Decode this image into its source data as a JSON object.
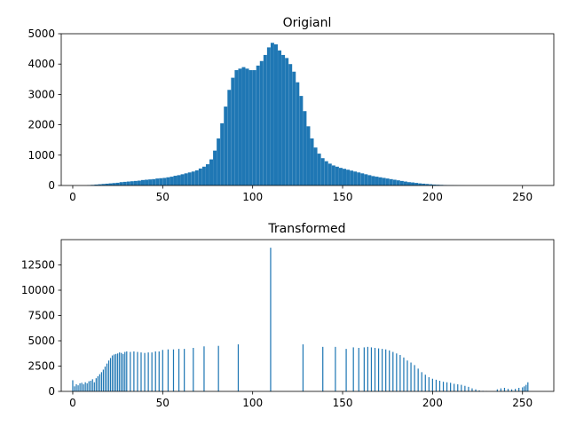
{
  "chart_data": [
    {
      "type": "bar",
      "title": "Origianl",
      "xlabel": "",
      "ylabel": "",
      "xlim": [
        -6.4,
        267.4
      ],
      "ylim": [
        0,
        5000
      ],
      "xticks": [
        0,
        50,
        100,
        150,
        200,
        250
      ],
      "yticks": [
        0,
        1000,
        2000,
        3000,
        4000,
        5000
      ],
      "grid": false,
      "color": "#1f77b4",
      "x": [
        0,
        2,
        4,
        6,
        8,
        10,
        12,
        14,
        16,
        18,
        20,
        22,
        24,
        26,
        28,
        30,
        32,
        34,
        36,
        38,
        40,
        42,
        44,
        46,
        48,
        50,
        52,
        54,
        56,
        58,
        60,
        62,
        64,
        66,
        68,
        70,
        72,
        74,
        76,
        78,
        80,
        82,
        84,
        86,
        88,
        90,
        92,
        94,
        96,
        98,
        100,
        102,
        104,
        106,
        108,
        110,
        112,
        114,
        116,
        118,
        120,
        122,
        124,
        126,
        128,
        130,
        132,
        134,
        136,
        138,
        140,
        142,
        144,
        146,
        148,
        150,
        152,
        154,
        156,
        158,
        160,
        162,
        164,
        166,
        168,
        170,
        172,
        174,
        176,
        178,
        180,
        182,
        184,
        186,
        188,
        190,
        192,
        194,
        196,
        198,
        200,
        202,
        204,
        206,
        208,
        210,
        212,
        214,
        216,
        218,
        220,
        222,
        224,
        226,
        228,
        230,
        232,
        234,
        236,
        238,
        240,
        242,
        244,
        246,
        248,
        250,
        252,
        254
      ],
      "values": [
        0,
        0,
        0,
        0,
        10,
        20,
        30,
        40,
        50,
        60,
        70,
        80,
        90,
        110,
        120,
        130,
        140,
        150,
        160,
        180,
        190,
        200,
        210,
        230,
        240,
        250,
        270,
        290,
        320,
        340,
        370,
        400,
        430,
        460,
        500,
        560,
        620,
        700,
        860,
        1150,
        1550,
        2050,
        2600,
        3150,
        3550,
        3800,
        3850,
        3900,
        3850,
        3800,
        3800,
        3950,
        4100,
        4300,
        4550,
        4700,
        4650,
        4450,
        4300,
        4200,
        4000,
        3750,
        3400,
        2950,
        2450,
        1950,
        1550,
        1250,
        1050,
        900,
        800,
        720,
        660,
        620,
        580,
        550,
        520,
        490,
        460,
        430,
        400,
        370,
        340,
        310,
        290,
        270,
        250,
        230,
        210,
        190,
        170,
        150,
        130,
        110,
        100,
        85,
        70,
        60,
        50,
        40,
        30,
        25,
        20,
        15,
        10,
        8,
        5,
        3,
        2,
        1,
        0,
        0,
        0,
        0,
        0,
        0,
        0,
        0,
        0,
        0,
        0,
        0,
        0,
        0,
        0,
        0,
        0,
        0
      ]
    },
    {
      "type": "bar",
      "title": "Transformed",
      "xlabel": "",
      "ylabel": "",
      "xlim": [
        -6.4,
        267.4
      ],
      "ylim": [
        0,
        15000
      ],
      "xticks": [
        0,
        50,
        100,
        150,
        200,
        250
      ],
      "yticks": [
        0,
        2500,
        5000,
        7500,
        10000,
        12500
      ],
      "grid": false,
      "color": "#1f77b4",
      "x": [
        0,
        1,
        2,
        3,
        4,
        5,
        6,
        7,
        8,
        9,
        10,
        11,
        12,
        13,
        14,
        15,
        16,
        17,
        18,
        19,
        20,
        21,
        22,
        23,
        24,
        25,
        26,
        27,
        28,
        29,
        30,
        32,
        34,
        36,
        38,
        40,
        42,
        44,
        46,
        48,
        50,
        53,
        56,
        59,
        62,
        67,
        73,
        81,
        92,
        110,
        128,
        139,
        146,
        152,
        156,
        159,
        162,
        164,
        166,
        168,
        170,
        172,
        174,
        176,
        178,
        180,
        182,
        184,
        186,
        188,
        190,
        192,
        194,
        196,
        198,
        200,
        202,
        204,
        206,
        208,
        210,
        212,
        214,
        216,
        218,
        220,
        222,
        224,
        226,
        228,
        230,
        232,
        234,
        236,
        238,
        240,
        242,
        244,
        246,
        248,
        250,
        251,
        252,
        253
      ],
      "values": [
        1100,
        500,
        700,
        600,
        800,
        850,
        700,
        900,
        800,
        1000,
        1050,
        1200,
        900,
        1300,
        1500,
        1700,
        1900,
        2150,
        2450,
        2750,
        3050,
        3300,
        3550,
        3650,
        3700,
        3750,
        3850,
        3800,
        3700,
        3900,
        3950,
        3900,
        3950,
        3900,
        3850,
        3800,
        3850,
        3850,
        3950,
        3950,
        4100,
        4150,
        4150,
        4200,
        4200,
        4300,
        4450,
        4500,
        4650,
        14200,
        4650,
        4400,
        4400,
        4200,
        4350,
        4300,
        4350,
        4400,
        4350,
        4300,
        4250,
        4200,
        4150,
        4050,
        3900,
        3750,
        3600,
        3350,
        3050,
        2850,
        2600,
        2250,
        1900,
        1650,
        1400,
        1250,
        1150,
        1050,
        950,
        900,
        850,
        750,
        700,
        650,
        550,
        450,
        300,
        200,
        100,
        50,
        20,
        0,
        0,
        200,
        300,
        350,
        250,
        200,
        250,
        350,
        400,
        500,
        650,
        900
      ]
    }
  ]
}
